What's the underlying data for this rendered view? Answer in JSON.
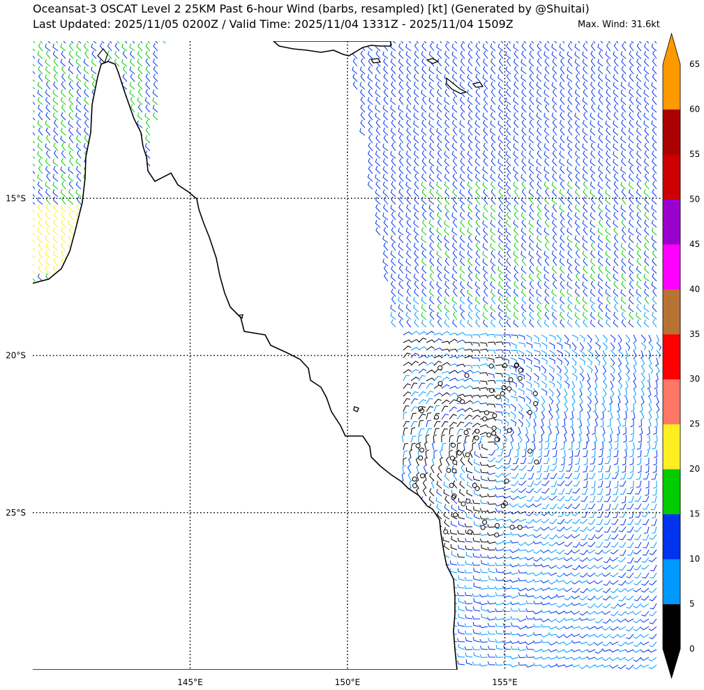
{
  "title": {
    "line1": "Oceansat-3 OSCAT Level 2 25KM Past 6-hour Wind (barbs, resampled) [kt] (Generated by @Shuitai)",
    "line2": "Last Updated: 2025/11/05 0200Z / Valid Time: 2025/11/04 1331Z - 2025/11/04 1509Z",
    "max_wind": "Max. Wind: 31.6kt"
  },
  "map": {
    "lon_range": [
      140,
      160
    ],
    "lat_range": [
      -30,
      -10
    ],
    "lon_ticks": [
      {
        "value": 145,
        "label": "145°E"
      },
      {
        "value": 150,
        "label": "150°E"
      },
      {
        "value": 155,
        "label": "155°E"
      }
    ],
    "lat_ticks": [
      {
        "value": -15,
        "label": "15°S"
      },
      {
        "value": -20,
        "label": "20°S"
      },
      {
        "value": -25,
        "label": "25°S"
      }
    ],
    "gridlines": "dotted",
    "land_color": "#ffffff",
    "coast_color": "#000000"
  },
  "colorbar": {
    "unit": "kt",
    "bounds": [
      0,
      5,
      10,
      15,
      20,
      25,
      30,
      35,
      40,
      45,
      50,
      55,
      60,
      65
    ],
    "labels": [
      "0",
      "5",
      "10",
      "15",
      "20",
      "25",
      "30",
      "35",
      "40",
      "45",
      "50",
      "55",
      "60",
      "65"
    ],
    "colors": [
      "#000000",
      "#0099ff",
      "#0033ee",
      "#00cc00",
      "#ffee22",
      "#ff7766",
      "#ff0000",
      "#b87333",
      "#ff00ff",
      "#9900cc",
      "#cc0000",
      "#aa0000",
      "#ff9900"
    ],
    "extend": "both"
  }
}
